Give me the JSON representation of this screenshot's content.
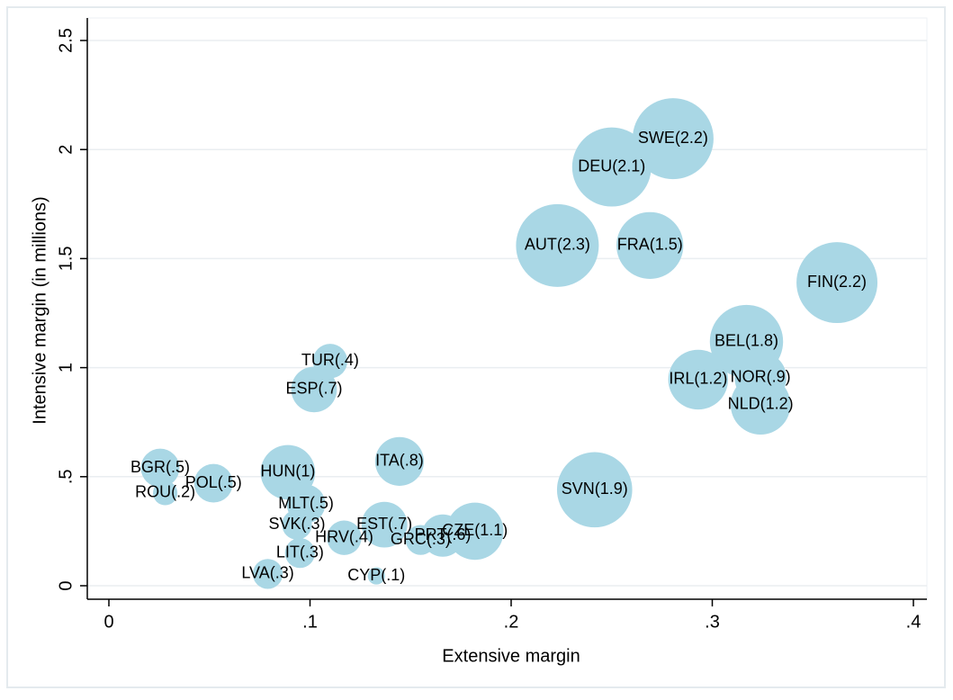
{
  "chart_data": {
    "type": "bubble",
    "x_label": "Extensive margin",
    "y_label": "Intensive margin (in millions)",
    "labels": [
      "SWE(2.2)",
      "DEU(2.1)",
      "AUT(2.3)",
      "FRA(1.5)",
      "FIN(2.2)",
      "BEL(1.8)",
      "IRL(1.2)",
      "NOR(.9)",
      "NLD(1.2)",
      "TUR(.4)",
      "ESP(.7)",
      "BGR(.5)",
      "ROU(.2)",
      "POL(.5)",
      "HUN(1)",
      "ITA(.8)",
      "MLT(.5)",
      "SVK(.3)",
      "LIT(.3)",
      "LVA(.3)",
      "HRV(.4)",
      "EST(.7)",
      "GRC(.3)",
      "PRT(.6)",
      "CZE(1.1)",
      "CYP(.1)",
      "SVN(1.9)"
    ],
    "x": [
      0.2805,
      0.25,
      0.223,
      0.269,
      0.362,
      0.317,
      0.293,
      0.324,
      0.324,
      0.11,
      0.102,
      0.0255,
      0.028,
      0.052,
      0.089,
      0.1445,
      0.098,
      0.0935,
      0.095,
      0.079,
      0.117,
      0.137,
      0.155,
      0.166,
      0.182,
      0.133,
      0.2415
    ],
    "y": [
      2.05,
      1.92,
      1.56,
      1.56,
      1.39,
      1.12,
      0.945,
      0.953,
      0.83,
      1.03,
      0.9,
      0.54,
      0.425,
      0.47,
      0.52,
      0.57,
      0.375,
      0.28,
      0.15,
      0.054,
      0.22,
      0.28,
      0.21,
      0.23,
      0.25,
      0.045,
      0.44
    ],
    "sizes": [
      2.2,
      2.1,
      2.3,
      1.5,
      2.2,
      1.8,
      1.2,
      0.9,
      1.2,
      0.4,
      0.7,
      0.5,
      0.2,
      0.5,
      1,
      0.8,
      0.5,
      0.3,
      0.3,
      0.3,
      0.4,
      0.7,
      0.3,
      0.6,
      1.1,
      0.1,
      1.9
    ],
    "color": "#a9d7e5",
    "xlim": [
      0,
      0.4
    ],
    "xticks": [
      0,
      {
        "value": 0.1,
        "label": ".1"
      },
      {
        "value": 0.2,
        "label": ".2"
      },
      {
        "value": 0.3,
        "label": ".3"
      },
      {
        "value": 0.4,
        "label": ".4"
      }
    ],
    "ylim": [
      0,
      2.5
    ],
    "yticks": [
      0,
      {
        "value": 0.5,
        "label": ".5"
      },
      1,
      1.5,
      2,
      2.5
    ],
    "grid": true
  }
}
